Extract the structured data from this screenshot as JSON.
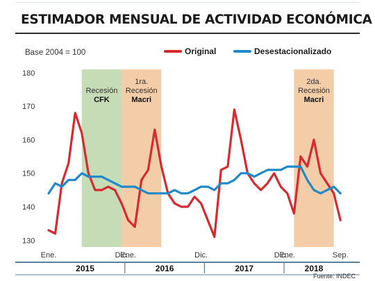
{
  "header": {
    "title": "ESTIMADOR MENSUAL DE ACTIVIDAD ECONÓMICA"
  },
  "footer": {
    "source": "Fuente: INDEC"
  },
  "colors": {
    "original": "#d72a2f",
    "seasonal": "#1f8ac9",
    "recession_cfk": "#c6dcb6",
    "recession_macri": "#f2cda8",
    "axis": "#5d7f9c"
  },
  "chart_data": {
    "type": "line",
    "note": "Base 2004 = 100",
    "ylim": [
      128,
      181
    ],
    "yticks": [
      130,
      140,
      150,
      160,
      170,
      180
    ],
    "month_labels": [
      {
        "i": 0,
        "text": "Ene."
      },
      {
        "i": 11,
        "text": "Dic."
      },
      {
        "i": 12,
        "text": "Ene."
      },
      {
        "i": 23,
        "text": "Dic."
      },
      {
        "i": 35,
        "text": "Dic."
      },
      {
        "i": 36,
        "text": "Ene."
      },
      {
        "i": 44,
        "text": "Sep."
      }
    ],
    "years": [
      {
        "text": "2015",
        "i": 5.5
      },
      {
        "text": "2016",
        "i": 17.5
      },
      {
        "text": "2017",
        "i": 29.5
      },
      {
        "text": "2018",
        "i": 40
      }
    ],
    "recessions": [
      {
        "start": 5,
        "end": 11,
        "color": "recession_cfk",
        "lines": [
          "Recesión"
        ],
        "bold": "CFK"
      },
      {
        "start": 11,
        "end": 17,
        "color": "recession_macri",
        "lines": [
          "1ra.",
          "Recesión"
        ],
        "bold": "Macri"
      },
      {
        "start": 37,
        "end": 43,
        "color": "recession_macri",
        "lines": [
          "2da.",
          "Recesión"
        ],
        "bold": "Macri"
      }
    ],
    "series": [
      {
        "name": "Original",
        "color": "original",
        "values": [
          133,
          132,
          147,
          153,
          168,
          162,
          150,
          145,
          145,
          146,
          145,
          141,
          136,
          134,
          148,
          151,
          163,
          152,
          144,
          141,
          140,
          140,
          143,
          141,
          136,
          131,
          151,
          152,
          169,
          160,
          150,
          147,
          145,
          147,
          150,
          146,
          144,
          138,
          155,
          152,
          160,
          150,
          147,
          144,
          136
        ]
      },
      {
        "name": "Desestacionalizado",
        "color": "seasonal",
        "values": [
          144,
          147,
          146,
          148,
          148,
          150,
          149,
          149,
          149,
          148,
          147,
          146,
          146,
          146,
          145,
          144,
          144,
          144,
          144,
          145,
          144,
          144,
          145,
          146,
          146,
          145,
          147,
          147,
          148,
          150,
          150,
          149,
          150,
          151,
          151,
          151,
          152,
          152,
          152,
          148,
          145,
          144,
          145,
          146,
          144
        ]
      }
    ]
  }
}
